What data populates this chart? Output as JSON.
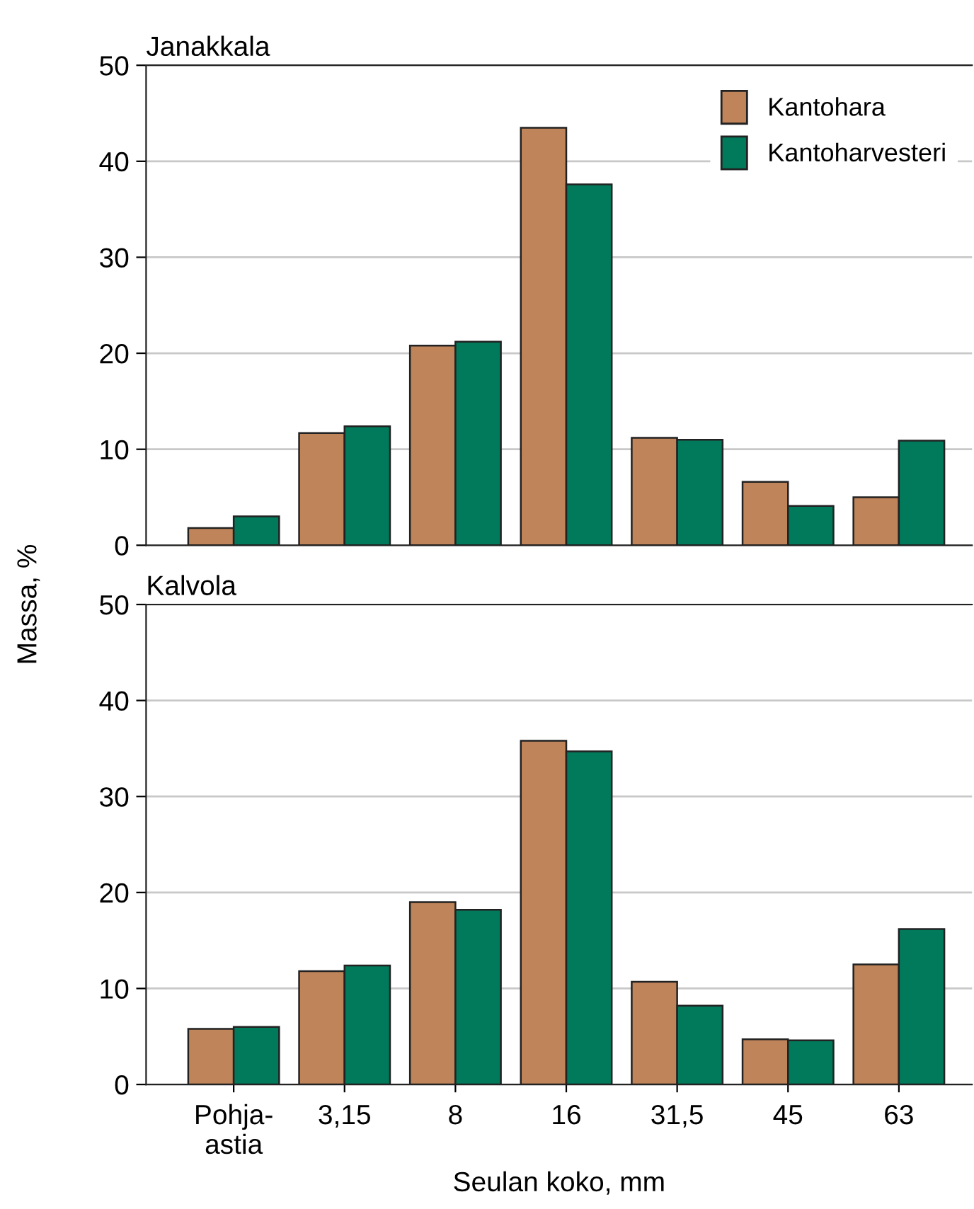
{
  "chart_data": [
    {
      "type": "bar",
      "title": "Janakkala",
      "ylabel": "Massa, %",
      "categories": [
        null,
        null,
        null,
        null,
        null,
        null,
        null
      ],
      "series": [
        {
          "name": "Kantohara",
          "color": "#c0845a",
          "values": [
            1.8,
            11.7,
            20.8,
            43.5,
            11.2,
            6.6,
            5.0
          ]
        },
        {
          "name": "Kantoharvesteri",
          "color": "#007a5a",
          "values": [
            3.0,
            12.4,
            21.2,
            37.6,
            11.0,
            4.1,
            10.9
          ]
        }
      ],
      "ylim": [
        0,
        50
      ],
      "yticks": [
        0,
        10,
        20,
        30,
        40,
        50
      ],
      "grid": "y",
      "legend": "top right",
      "tick_labels": "y"
    },
    {
      "type": "bar",
      "title": "Kalvola",
      "xlabel": "Seulan koko, mm",
      "categories": [
        "Pohja-\nastia",
        "3,15",
        "8",
        "16",
        "31,5",
        "45",
        "63"
      ],
      "series": [
        {
          "color": "#c0845a",
          "values": [
            5.8,
            11.8,
            19.0,
            35.8,
            10.7,
            4.7,
            12.5
          ]
        },
        {
          "color": "#007a5a",
          "values": [
            6.0,
            12.4,
            18.2,
            34.7,
            8.2,
            4.6,
            16.2
          ]
        }
      ],
      "ylim": [
        0,
        50
      ],
      "yticks": [
        0,
        10,
        20,
        30,
        40,
        50
      ],
      "grid": "y"
    }
  ]
}
